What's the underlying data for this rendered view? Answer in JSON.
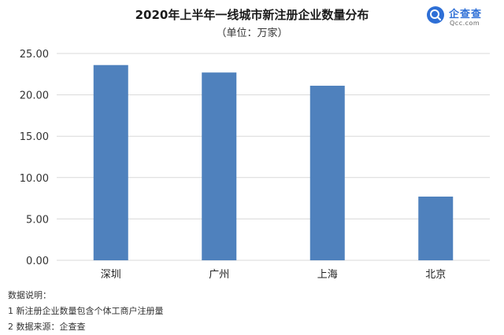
{
  "title": "2020年上半年一线城市新注册企业数量分布",
  "subtitle": "（单位：万家）",
  "logo": {
    "name": "企查查",
    "sub": "Qcc.com"
  },
  "notes": {
    "heading": "数据说明：",
    "items": [
      "1 新注册企业数量包含个体工商户注册量",
      "2 数据来源：企查查"
    ]
  },
  "colors": {
    "bar": "#4f81bd",
    "grid": "#d9d9d9",
    "logo": "#2e6fd6"
  },
  "chart_data": {
    "type": "bar",
    "title": "2020年上半年一线城市新注册企业数量分布",
    "subtitle": "（单位：万家）",
    "xlabel": "",
    "ylabel": "",
    "categories": [
      "深圳",
      "广州",
      "上海",
      "北京"
    ],
    "values": [
      23.6,
      22.7,
      21.1,
      7.7
    ],
    "ylim": [
      0,
      25
    ],
    "yticks": [
      0,
      5,
      10,
      15,
      20,
      25
    ],
    "ytick_labels": [
      "0.00",
      "5.00",
      "10.00",
      "15.00",
      "20.00",
      "25.00"
    ],
    "grid": true,
    "legend": "none"
  }
}
